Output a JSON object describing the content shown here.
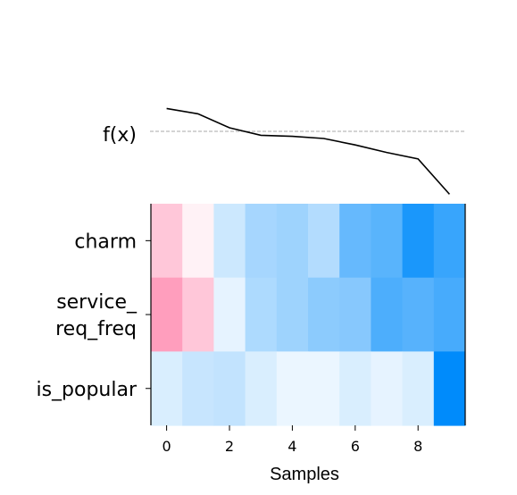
{
  "chart_data": {
    "type": "heatmap",
    "fx_label": "f(x)",
    "fx_values": [
      0.98,
      0.93,
      0.8,
      0.73,
      0.72,
      0.7,
      0.64,
      0.57,
      0.51,
      0.18
    ],
    "fx_baseline": 0.88,
    "xlabel": "Samples",
    "x": [
      0,
      1,
      2,
      3,
      4,
      5,
      6,
      7,
      8,
      9
    ],
    "x_ticks": [
      "0",
      "2",
      "4",
      "6",
      "8"
    ],
    "x_tick_values": [
      0,
      2,
      4,
      6,
      8
    ],
    "rows": [
      {
        "label": "charm",
        "label_lines": [
          "charm"
        ],
        "values": [
          0.22,
          0.05,
          -0.2,
          -0.35,
          -0.38,
          -0.3,
          -0.6,
          -0.65,
          -0.9,
          -0.78
        ]
      },
      {
        "label": "service_req_freq",
        "label_lines": [
          "service_",
          "req_freq"
        ],
        "values": [
          0.38,
          0.22,
          -0.1,
          -0.32,
          -0.38,
          -0.45,
          -0.47,
          -0.7,
          -0.66,
          -0.72
        ]
      },
      {
        "label": "is_popular",
        "label_lines": [
          "is_popular"
        ],
        "values": [
          -0.15,
          -0.22,
          -0.24,
          -0.15,
          -0.08,
          -0.08,
          -0.15,
          -0.1,
          -0.15,
          -1.0
        ]
      }
    ],
    "colormap": {
      "positive": "#ff0051",
      "negative": "#008bfb",
      "neutral": "#ffffff"
    },
    "baseline_style": "dashed gray"
  }
}
